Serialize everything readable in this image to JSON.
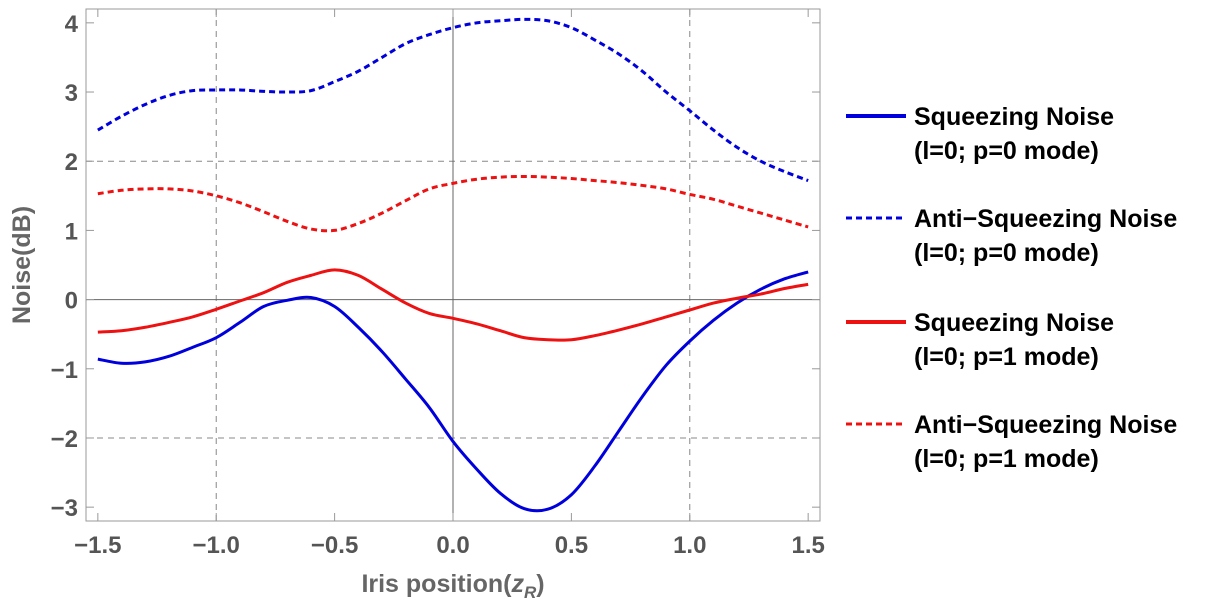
{
  "chart_data": {
    "type": "line",
    "title": "",
    "xlabel_main": "Iris position(",
    "xlabel_sym": "z",
    "xlabel_sub": "R",
    "xlabel_close": ")",
    "ylabel": "Noise(dB)",
    "xlim": [
      -1.55,
      1.55
    ],
    "ylim": [
      -3.2,
      4.2
    ],
    "grid": "dashed",
    "legend_position": "right",
    "x_ticks": [
      -1.5,
      -1.0,
      -0.5,
      0.0,
      0.5,
      1.0,
      1.5
    ],
    "x_tick_labels": [
      "−1.5",
      "−1.0",
      "−0.5",
      "0.0",
      "0.5",
      "1.0",
      "1.5"
    ],
    "y_ticks": [
      -3,
      -2,
      -1,
      0,
      1,
      2,
      3,
      4
    ],
    "y_tick_labels": [
      "−3",
      "−2",
      "−1",
      "0",
      "1",
      "2",
      "3",
      "4"
    ],
    "x_grid": [
      -1.0,
      0.0,
      1.0
    ],
    "y_grid": [
      -2,
      2
    ],
    "x": [
      -1.5,
      -1.4,
      -1.3,
      -1.2,
      -1.1,
      -1.0,
      -0.9,
      -0.8,
      -0.7,
      -0.6,
      -0.5,
      -0.4,
      -0.3,
      -0.2,
      -0.1,
      0.0,
      0.1,
      0.2,
      0.3,
      0.4,
      0.5,
      0.6,
      0.7,
      0.8,
      0.9,
      1.0,
      1.1,
      1.2,
      1.3,
      1.4,
      1.5
    ],
    "series": [
      {
        "legend_line1": "Squeezing Noise",
        "legend_line2": "(l=0; p=0 mode)",
        "color": "#0000dd",
        "dashed": false,
        "values": [
          -0.86,
          -0.92,
          -0.9,
          -0.82,
          -0.69,
          -0.55,
          -0.33,
          -0.1,
          -0.01,
          0.03,
          -0.1,
          -0.4,
          -0.75,
          -1.15,
          -1.56,
          -2.05,
          -2.45,
          -2.8,
          -3.02,
          -3.03,
          -2.82,
          -2.4,
          -1.9,
          -1.4,
          -0.95,
          -0.6,
          -0.3,
          -0.05,
          0.15,
          0.3,
          0.4
        ]
      },
      {
        "legend_line1": "Anti−Squeezing Noise",
        "legend_line2": "(l=0; p=0 mode)",
        "color": "#0000dd",
        "dashed": true,
        "values": [
          2.45,
          2.65,
          2.82,
          2.95,
          3.02,
          3.03,
          3.03,
          3.01,
          3.0,
          3.02,
          3.15,
          3.3,
          3.5,
          3.7,
          3.83,
          3.93,
          4.0,
          4.03,
          4.05,
          4.03,
          3.93,
          3.75,
          3.55,
          3.3,
          3.0,
          2.73,
          2.45,
          2.2,
          2.0,
          1.85,
          1.72
        ]
      },
      {
        "legend_line1": "Squeezing Noise",
        "legend_line2": "(l=0; p=1 mode)",
        "color": "#ee1111",
        "dashed": false,
        "values": [
          -0.47,
          -0.45,
          -0.4,
          -0.33,
          -0.25,
          -0.14,
          -0.02,
          0.1,
          0.25,
          0.35,
          0.43,
          0.35,
          0.15,
          -0.05,
          -0.2,
          -0.27,
          -0.35,
          -0.45,
          -0.55,
          -0.58,
          -0.58,
          -0.52,
          -0.44,
          -0.35,
          -0.25,
          -0.15,
          -0.05,
          0.02,
          0.08,
          0.16,
          0.22
        ]
      },
      {
        "legend_line1": "Anti−Squeezing Noise",
        "legend_line2": "(l=0; p=1 mode)",
        "color": "#ee1111",
        "dashed": true,
        "values": [
          1.53,
          1.58,
          1.6,
          1.6,
          1.57,
          1.5,
          1.4,
          1.27,
          1.13,
          1.02,
          1.0,
          1.1,
          1.25,
          1.43,
          1.6,
          1.68,
          1.74,
          1.77,
          1.78,
          1.77,
          1.75,
          1.72,
          1.69,
          1.65,
          1.6,
          1.52,
          1.45,
          1.35,
          1.25,
          1.15,
          1.05
        ]
      }
    ]
  }
}
